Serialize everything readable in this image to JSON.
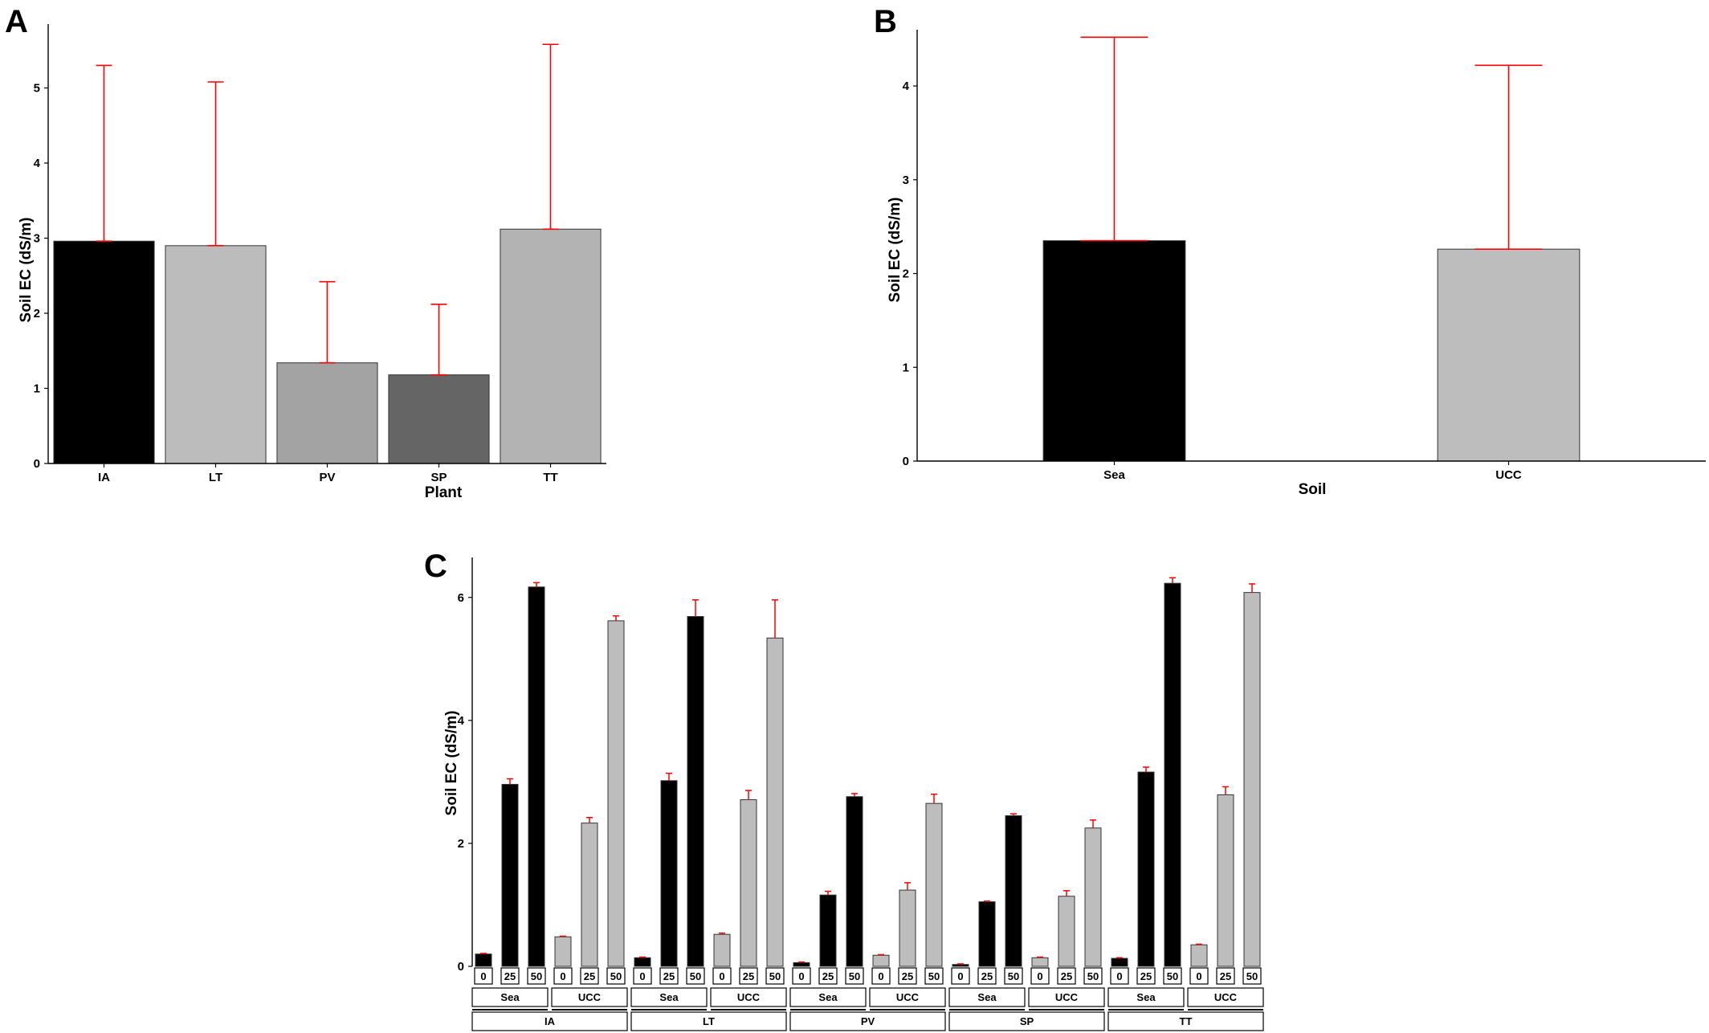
{
  "panels": [
    {
      "label": "A",
      "chart_data": {
        "type": "bar",
        "xlabel": "Plant",
        "ylabel": "Soil EC (dS/m)",
        "ylim": [
          0,
          5.85
        ],
        "yticks": [
          0,
          1,
          2,
          3,
          4,
          5
        ],
        "categories": [
          "IA",
          "LT",
          "PV",
          "SP",
          "TT"
        ],
        "values": [
          2.96,
          2.9,
          1.34,
          1.18,
          3.12
        ],
        "error_upper": [
          5.3,
          5.08,
          2.42,
          2.12,
          5.58
        ],
        "colors": [
          "#000000",
          "#bcbcbc",
          "#a3a3a3",
          "#656565",
          "#b3b3b3"
        ],
        "error_color": "#ff0000"
      }
    },
    {
      "label": "B",
      "chart_data": {
        "type": "bar",
        "xlabel": "Soil",
        "ylabel": "Soil EC (dS/m)",
        "ylim": [
          0,
          4.6
        ],
        "yticks": [
          0,
          1,
          2,
          3,
          4
        ],
        "categories": [
          "Sea",
          "UCC"
        ],
        "values": [
          2.35,
          2.26
        ],
        "error_upper": [
          4.52,
          4.22
        ],
        "colors": [
          "#000000",
          "#bdbdbd"
        ],
        "error_color": "#ff0000"
      }
    },
    {
      "label": "C",
      "chart_data": {
        "type": "bar",
        "ylabel": "Soil EC (dS/m)",
        "ylim": [
          0,
          6.65
        ],
        "yticks": [
          0,
          2,
          4,
          6
        ],
        "plants": [
          "IA",
          "LT",
          "PV",
          "SP",
          "TT"
        ],
        "soils": [
          "Sea",
          "UCC"
        ],
        "levels": [
          "0",
          "25",
          "50"
        ],
        "soil_colors": {
          "Sea": "#000000",
          "UCC": "#bdbdbd"
        },
        "error_color": "#ff0000",
        "values": {
          "IA": {
            "Sea": [
              0.2,
              2.96,
              6.17
            ],
            "UCC": [
              0.48,
              2.33,
              5.62
            ]
          },
          "LT": {
            "Sea": [
              0.14,
              3.02,
              5.69
            ],
            "UCC": [
              0.52,
              2.71,
              5.34
            ]
          },
          "PV": {
            "Sea": [
              0.06,
              1.16,
              2.76
            ],
            "UCC": [
              0.18,
              1.24,
              2.65
            ]
          },
          "SP": {
            "Sea": [
              0.03,
              1.05,
              2.45
            ],
            "UCC": [
              0.14,
              1.14,
              2.25
            ]
          },
          "TT": {
            "Sea": [
              0.13,
              3.16,
              6.23
            ],
            "UCC": [
              0.35,
              2.79,
              6.08
            ]
          }
        },
        "error_upper": {
          "IA": {
            "Sea": [
              0.21,
              3.05,
              6.24
            ],
            "UCC": [
              0.49,
              2.42,
              5.7
            ]
          },
          "LT": {
            "Sea": [
              0.15,
              3.14,
              5.96
            ],
            "UCC": [
              0.54,
              2.86,
              5.96
            ]
          },
          "PV": {
            "Sea": [
              0.07,
              1.22,
              2.81
            ],
            "UCC": [
              0.19,
              1.36,
              2.8
            ]
          },
          "SP": {
            "Sea": [
              0.04,
              1.06,
              2.48
            ],
            "UCC": [
              0.15,
              1.23,
              2.38
            ]
          },
          "TT": {
            "Sea": [
              0.14,
              3.24,
              6.32
            ],
            "UCC": [
              0.36,
              2.92,
              6.22
            ]
          }
        }
      }
    }
  ]
}
